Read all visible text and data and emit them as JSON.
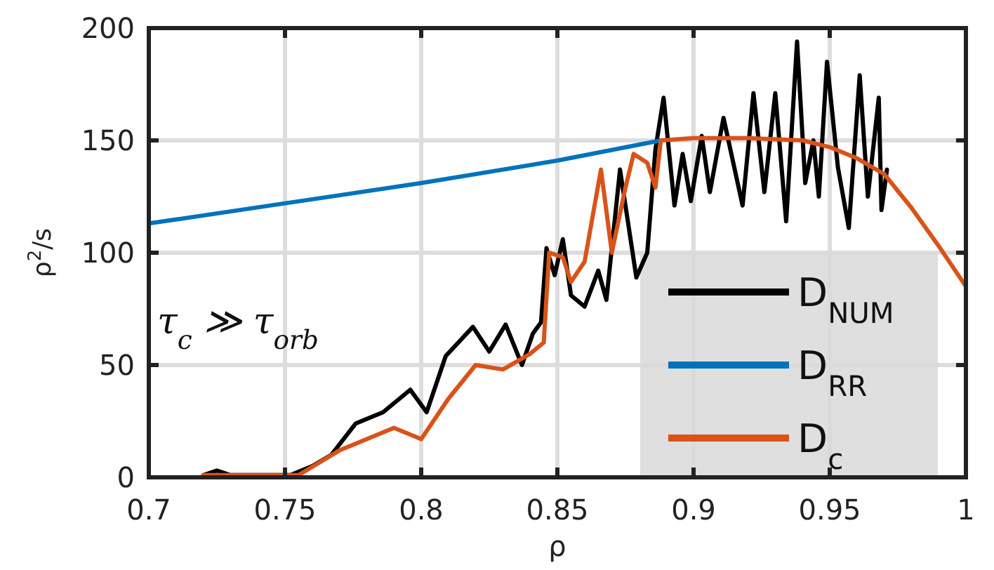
{
  "chart_data": {
    "type": "line",
    "xlabel": "ρ",
    "ylabel": "ρ$^{2}$/s",
    "xlim": [
      0.7,
      1
    ],
    "ylim": [
      0,
      200
    ],
    "xticks": [
      0.7,
      0.75,
      0.8,
      0.85,
      0.9,
      0.95,
      1
    ],
    "yticks": [
      0,
      50,
      100,
      150,
      200
    ],
    "grid": true,
    "legend": "bottom right",
    "line_style": "solid",
    "marker": "none",
    "annotations": [
      "τ$_{c}$ ≫ τ$_{orb}$"
    ],
    "series": [
      {
        "name": "D$_{NUM}$",
        "color": "#000000",
        "x": [
          0.72,
          0.725,
          0.73,
          0.74,
          0.752,
          0.76,
          0.767,
          0.776,
          0.786,
          0.796,
          0.802,
          0.809,
          0.819,
          0.825,
          0.831,
          0.837,
          0.841,
          0.844,
          0.846,
          0.849,
          0.852,
          0.855,
          0.86,
          0.865,
          0.868,
          0.873,
          0.879,
          0.883,
          0.886,
          0.889,
          0.893,
          0.896,
          0.899,
          0.903,
          0.906,
          0.911,
          0.918,
          0.922,
          0.926,
          0.93,
          0.934,
          0.938,
          0.941,
          0.944,
          0.946,
          0.949,
          0.953,
          0.957,
          0.961,
          0.964,
          0.968,
          0.969,
          0.971
        ],
        "values": [
          1,
          3,
          1,
          1,
          1,
          5,
          10,
          24,
          29,
          39,
          29,
          54,
          67,
          56,
          68,
          50,
          64,
          69,
          102,
          90,
          106,
          81,
          76,
          92,
          79,
          137,
          89,
          100,
          146,
          169,
          121,
          144,
          123,
          152,
          127,
          160,
          121,
          171,
          127,
          171,
          114,
          194,
          131,
          150,
          125,
          185,
          138,
          111,
          179,
          125,
          169,
          119,
          137
        ]
      },
      {
        "name": "D$_{RR}$",
        "color": "#0072bd",
        "x": [
          0.7,
          0.75,
          0.8,
          0.85,
          0.888
        ],
        "values": [
          113,
          122,
          131,
          141,
          150
        ]
      },
      {
        "name": "D$_{c}$",
        "color": "#d95319",
        "x": [
          0.72,
          0.755,
          0.77,
          0.79,
          0.8,
          0.81,
          0.82,
          0.83,
          0.84,
          0.845,
          0.847,
          0.852,
          0.855,
          0.86,
          0.866,
          0.87,
          0.875,
          0.878,
          0.883,
          0.886,
          0.888,
          0.9,
          0.92,
          0.94,
          0.95,
          0.96,
          0.97,
          0.98,
          0.99,
          1
        ],
        "values": [
          1,
          1,
          12,
          22,
          17,
          35,
          50,
          48,
          55,
          60,
          100,
          98,
          87,
          96,
          137,
          100,
          129,
          144,
          140,
          129,
          150,
          151,
          151,
          150,
          147,
          142,
          135,
          120,
          103,
          85
        ]
      }
    ]
  }
}
